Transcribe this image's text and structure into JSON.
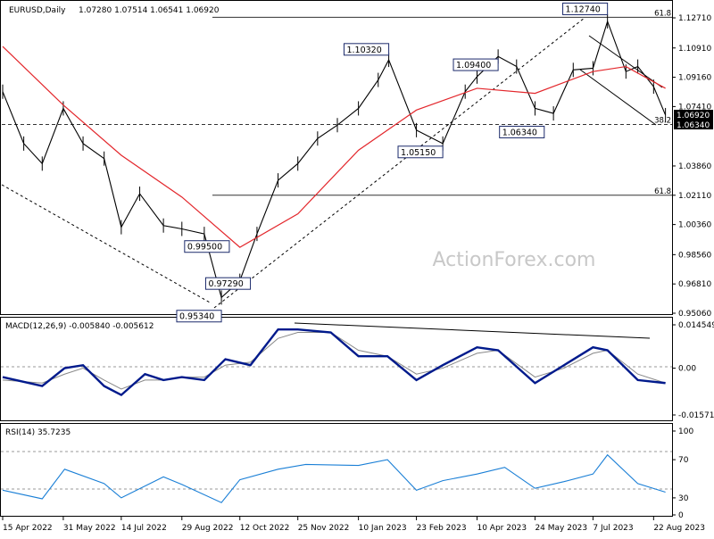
{
  "header": {
    "symbol": "EURUSD,Daily",
    "ohlc": "1.07280 1.07514 1.06541 1.06920"
  },
  "watermark": "ActionForex.com",
  "colors": {
    "price": "#000000",
    "ma": "#e3262b",
    "macd": "#001a8c",
    "signal": "#888888",
    "rsi": "#1a7fd6",
    "label_border": "#1b2a6b"
  },
  "chart_data": [
    {
      "type": "line",
      "panel": "price",
      "title": "EURUSD,Daily",
      "y_ticks": [
        "1.12710",
        "1.10910",
        "1.09160",
        "1.07410",
        "1.03860",
        "1.02110",
        "1.00360",
        "0.98560",
        "0.96810",
        "0.95060"
      ],
      "ylim": [
        0.9506,
        1.1271
      ],
      "x_ticks": [
        "15 Apr 2022",
        "31 May 2022",
        "14 Jul 2022",
        "29 Aug 2022",
        "12 Oct 2022",
        "25 Nov 2022",
        "10 Jan 2023",
        "23 Feb 2023",
        "10 Apr 2023",
        "24 May 2023",
        "7 Jul 2023",
        "22 Aug 2023"
      ],
      "current_price_labels": [
        "1.06920",
        "1.06340"
      ],
      "fib_labels": [
        "61.8",
        "38.2",
        "61.8"
      ],
      "fib_levels": [
        1.1274,
        1.0634,
        1.0211
      ],
      "annotations": [
        {
          "text": "1.12740",
          "date": "2023-07-18",
          "value": 1.1274
        },
        {
          "text": "1.10320",
          "date": "2023-02-02",
          "value": 1.1032
        },
        {
          "text": "1.09400",
          "date": "2023-04-26",
          "value": 1.094
        },
        {
          "text": "1.06340",
          "date": "2023-05-31",
          "value": 1.0634
        },
        {
          "text": "1.05150",
          "date": "2023-03-15",
          "value": 1.0515
        },
        {
          "text": "0.99500",
          "date": "2022-10-04",
          "value": 0.995
        },
        {
          "text": "0.97290",
          "date": "2022-10-20",
          "value": 0.9729
        },
        {
          "text": "0.95340",
          "date": "2022-09-28",
          "value": 0.9534
        }
      ],
      "series": [
        {
          "name": "",
          "role": "close",
          "x": [
            "2022-04-15",
            "2022-05-01",
            "2022-05-15",
            "2022-05-31",
            "2022-06-15",
            "2022-07-01",
            "2022-07-14",
            "2022-07-28",
            "2022-08-15",
            "2022-08-29",
            "2022-09-15",
            "2022-09-28",
            "2022-10-12",
            "2022-10-25",
            "2022-11-10",
            "2022-11-25",
            "2022-12-10",
            "2022-12-25",
            "2023-01-10",
            "2023-01-25",
            "2023-02-02",
            "2023-02-23",
            "2023-03-15",
            "2023-04-01",
            "2023-04-10",
            "2023-04-26",
            "2023-05-10",
            "2023-05-24",
            "2023-06-07",
            "2023-06-22",
            "2023-07-07",
            "2023-07-18",
            "2023-08-01",
            "2023-08-10",
            "2023-08-22",
            "2023-08-31"
          ],
          "y": [
            1.083,
            1.052,
            1.04,
            1.073,
            1.052,
            1.043,
            1.002,
            1.022,
            1.003,
            1.001,
            0.998,
            0.96,
            0.97,
            0.998,
            1.03,
            1.04,
            1.055,
            1.063,
            1.073,
            1.09,
            1.102,
            1.06,
            1.052,
            1.083,
            1.092,
            1.104,
            1.098,
            1.073,
            1.07,
            1.096,
            1.097,
            1.125,
            1.095,
            1.098,
            1.086,
            1.069
          ]
        },
        {
          "name": "",
          "role": "moving_average",
          "x": [
            "2022-04-15",
            "2022-05-31",
            "2022-07-14",
            "2022-08-29",
            "2022-10-12",
            "2022-11-25",
            "2023-01-10",
            "2023-02-23",
            "2023-04-10",
            "2023-05-24",
            "2023-07-07",
            "2023-08-01",
            "2023-08-31"
          ],
          "y": [
            1.11,
            1.075,
            1.045,
            1.02,
            0.99,
            1.01,
            1.048,
            1.072,
            1.085,
            1.082,
            1.095,
            1.098,
            1.085
          ]
        }
      ]
    },
    {
      "type": "line",
      "panel": "macd",
      "title": "MACD(12,26,9) -0.005840 -0.005612",
      "y_ticks": [
        "0.014549",
        "0.00",
        "-0.015712"
      ],
      "ylim": [
        -0.015712,
        0.014549
      ],
      "x": [
        "2022-04-15",
        "2022-05-15",
        "2022-06-01",
        "2022-06-15",
        "2022-07-01",
        "2022-07-14",
        "2022-08-01",
        "2022-08-15",
        "2022-08-29",
        "2022-09-15",
        "2022-10-01",
        "2022-10-20",
        "2022-11-10",
        "2022-11-25",
        "2022-12-20",
        "2023-01-10",
        "2023-02-01",
        "2023-02-23",
        "2023-03-15",
        "2023-04-10",
        "2023-04-26",
        "2023-05-24",
        "2023-06-15",
        "2023-07-07",
        "2023-07-18",
        "2023-08-10",
        "2023-08-31"
      ],
      "series": [
        {
          "name": "",
          "values": [
            -0.003,
            -0.006,
            0.0,
            0.001,
            -0.006,
            -0.009,
            -0.002,
            -0.004,
            -0.003,
            -0.004,
            0.003,
            0.001,
            0.013,
            0.013,
            0.012,
            0.004,
            0.004,
            -0.004,
            0.001,
            0.007,
            0.006,
            -0.005,
            0.001,
            0.007,
            0.006,
            -0.004,
            -0.005
          ]
        },
        {
          "name": "",
          "values": [
            -0.004,
            -0.005,
            -0.002,
            0.0,
            -0.004,
            -0.007,
            -0.004,
            -0.004,
            -0.003,
            -0.003,
            0.001,
            0.002,
            0.01,
            0.012,
            0.012,
            0.006,
            0.004,
            -0.002,
            0.0,
            0.005,
            0.006,
            -0.003,
            0.0,
            0.005,
            0.006,
            -0.002,
            -0.005
          ]
        }
      ]
    },
    {
      "type": "line",
      "panel": "rsi",
      "title": "RSI(14) 35.7235",
      "y_ticks": [
        "100",
        "70",
        "30",
        "0"
      ],
      "ylim": [
        0,
        100
      ],
      "x": [
        "2022-04-15",
        "2022-05-15",
        "2022-06-01",
        "2022-07-01",
        "2022-07-14",
        "2022-08-15",
        "2022-08-29",
        "2022-09-28",
        "2022-10-12",
        "2022-11-10",
        "2022-12-01",
        "2023-01-10",
        "2023-02-01",
        "2023-02-23",
        "2023-03-15",
        "2023-04-10",
        "2023-05-01",
        "2023-05-24",
        "2023-06-15",
        "2023-07-07",
        "2023-07-18",
        "2023-08-10",
        "2023-08-31"
      ],
      "series": [
        {
          "name": "",
          "values": [
            38,
            29,
            60,
            45,
            30,
            52,
            44,
            25,
            49,
            60,
            65,
            64,
            70,
            38,
            48,
            55,
            62,
            40,
            47,
            55,
            75,
            45,
            36
          ]
        }
      ]
    }
  ]
}
